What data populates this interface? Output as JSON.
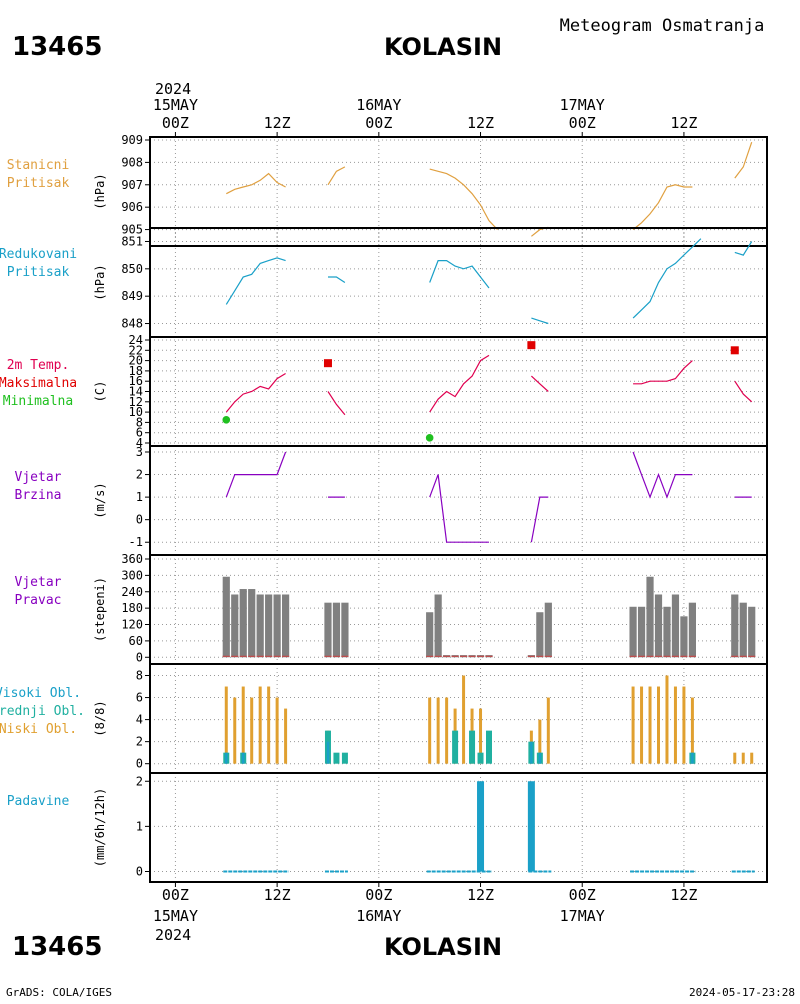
{
  "header": {
    "station_id": "13465",
    "station_name": "KOLASIN",
    "subtitle": "Meteogram Osmatranja"
  },
  "footer": {
    "credit": "GrADS: COLA/IGES",
    "timestamp": "2024-05-17-23:28"
  },
  "time_axis": {
    "year": "2024",
    "major_ticks": [
      {
        "t": 0,
        "label": "00Z",
        "date": "15MAY"
      },
      {
        "t": 12,
        "label": "12Z",
        "date": ""
      },
      {
        "t": 24,
        "label": "00Z",
        "date": "16MAY"
      },
      {
        "t": 36,
        "label": "12Z",
        "date": ""
      },
      {
        "t": 48,
        "label": "00Z",
        "date": "17MAY"
      },
      {
        "t": 60,
        "label": "12Z",
        "date": ""
      }
    ]
  },
  "panels": [
    {
      "key": "p",
      "labels": [
        "Stanicni",
        "Pritisak"
      ],
      "label_colors": [
        "#e0a040",
        "#e0a040"
      ],
      "unit": "(hPa)"
    },
    {
      "key": "slp",
      "labels": [
        "Redukovani",
        "Pritisak"
      ],
      "label_colors": [
        "#1aa0c8",
        "#1aa0c8"
      ],
      "unit": "(hPa)"
    },
    {
      "key": "temp",
      "labels": [
        "2m Temp.",
        "Maksimalna",
        "Minimalna"
      ],
      "label_colors": [
        "#e00050",
        "#e00000",
        "#20c020"
      ],
      "unit": "(C)"
    },
    {
      "key": "wspd",
      "labels": [
        "Vjetar",
        "Brzina"
      ],
      "label_colors": [
        "#8800c0",
        "#8800c0"
      ],
      "unit": "(m/s)"
    },
    {
      "key": "wdir",
      "labels": [
        "Vjetar",
        "Pravac"
      ],
      "label_colors": [
        "#8800c0",
        "#8800c0"
      ],
      "unit": "(stepeni)"
    },
    {
      "key": "cloud",
      "labels": [
        "Visoki Obl.",
        "Srednji Obl.",
        "Niski Obl."
      ],
      "label_colors": [
        "#1aa0c8",
        "#20b0a0",
        "#e0a030"
      ],
      "unit": "(8/8)"
    },
    {
      "key": "precip",
      "labels": [
        "Padavine"
      ],
      "label_colors": [
        "#1aa0c8"
      ],
      "unit": "(mm/6h/12h)"
    }
  ],
  "chart_data": [
    {
      "type": "line",
      "key": "p",
      "ylim": [
        904.4,
        909
      ],
      "yticks": [
        905,
        906,
        907,
        908,
        909
      ],
      "series": [
        {
          "color": "#e0a040",
          "points": [
            [
              6,
              906.6
            ],
            [
              7,
              906.8
            ],
            [
              8,
              906.9
            ],
            [
              9,
              907
            ],
            [
              10,
              907.2
            ],
            [
              11,
              907.5
            ],
            [
              12,
              907.1
            ],
            [
              13,
              906.9
            ]
          ]
        },
        {
          "color": "#e0a040",
          "points": [
            [
              18,
              907
            ],
            [
              19,
              907.6
            ],
            [
              20,
              907.8
            ]
          ]
        },
        {
          "color": "#e0a040",
          "points": [
            [
              30,
              907.7
            ],
            [
              31,
              907.6
            ],
            [
              32,
              907.5
            ],
            [
              33,
              907.3
            ],
            [
              34,
              907
            ],
            [
              35,
              906.6
            ],
            [
              36,
              906.1
            ],
            [
              37,
              905.4
            ],
            [
              38,
              905
            ]
          ]
        },
        {
          "color": "#e0a040",
          "points": [
            [
              42,
              904.7
            ],
            [
              43,
              905
            ],
            [
              44,
              905.1
            ]
          ]
        },
        {
          "color": "#e0a040",
          "points": [
            [
              54,
              905
            ],
            [
              55,
              905.3
            ],
            [
              56,
              905.7
            ],
            [
              57,
              906.2
            ],
            [
              58,
              906.9
            ],
            [
              59,
              907
            ],
            [
              60,
              906.9
            ],
            [
              61,
              906.9
            ]
          ]
        },
        {
          "color": "#e0a040",
          "points": [
            [
              66,
              907.3
            ],
            [
              67,
              907.8
            ],
            [
              68,
              908.9
            ]
          ]
        }
      ]
    },
    {
      "type": "line",
      "key": "slp",
      "ylim": [
        847.8,
        851.2
      ],
      "yticks": [
        848,
        849,
        850,
        851
      ],
      "series": [
        {
          "color": "#1aa0c8",
          "points": [
            [
              6,
              848.7
            ],
            [
              7,
              849.2
            ],
            [
              8,
              849.7
            ],
            [
              9,
              849.8
            ],
            [
              10,
              850.2
            ],
            [
              11,
              850.3
            ],
            [
              12,
              850.4
            ],
            [
              13,
              850.3
            ]
          ]
        },
        {
          "color": "#1aa0c8",
          "points": [
            [
              18,
              849.7
            ],
            [
              19,
              849.7
            ],
            [
              20,
              849.5
            ]
          ]
        },
        {
          "color": "#1aa0c8",
          "points": [
            [
              30,
              849.5
            ],
            [
              31,
              850.3
            ],
            [
              32,
              850.3
            ],
            [
              33,
              850.1
            ],
            [
              34,
              850
            ],
            [
              35,
              850.1
            ],
            [
              36,
              849.7
            ],
            [
              37,
              849.3
            ]
          ]
        },
        {
          "color": "#1aa0c8",
          "points": [
            [
              42,
              848.2
            ],
            [
              43,
              848.1
            ],
            [
              44,
              848
            ]
          ]
        },
        {
          "color": "#1aa0c8",
          "points": [
            [
              54,
              848.2
            ],
            [
              55,
              848.5
            ],
            [
              56,
              848.8
            ],
            [
              57,
              849.5
            ],
            [
              58,
              850
            ],
            [
              59,
              850.2
            ],
            [
              60,
              850.5
            ],
            [
              61,
              850.8
            ],
            [
              62,
              851.1
            ]
          ]
        },
        {
          "color": "#1aa0c8",
          "points": [
            [
              66,
              850.6
            ],
            [
              67,
              850.5
            ],
            [
              68,
              851
            ]
          ]
        }
      ]
    },
    {
      "type": "line",
      "key": "temp",
      "ylim": [
        4,
        24
      ],
      "yticks": [
        4,
        6,
        8,
        10,
        12,
        14,
        16,
        18,
        20,
        22,
        24
      ],
      "series": [
        {
          "color": "#e00050",
          "points": [
            [
              6,
              10
            ],
            [
              7,
              12
            ],
            [
              8,
              13.5
            ],
            [
              9,
              14
            ],
            [
              10,
              15
            ],
            [
              11,
              14.5
            ],
            [
              12,
              16.5
            ],
            [
              13,
              17.5
            ]
          ]
        },
        {
          "color": "#e00050",
          "points": [
            [
              18,
              14
            ],
            [
              19,
              11.5
            ],
            [
              20,
              9.5
            ]
          ]
        },
        {
          "color": "#e00050",
          "points": [
            [
              30,
              10
            ],
            [
              31,
              12.5
            ],
            [
              32,
              14
            ],
            [
              33,
              13
            ],
            [
              34,
              15.5
            ],
            [
              35,
              17
            ],
            [
              36,
              20
            ],
            [
              37,
              21
            ]
          ]
        },
        {
          "color": "#e00050",
          "points": [
            [
              42,
              17
            ],
            [
              43,
              15.5
            ],
            [
              44,
              14
            ]
          ]
        },
        {
          "color": "#e00050",
          "points": [
            [
              54,
              15.5
            ],
            [
              55,
              15.5
            ],
            [
              56,
              16
            ],
            [
              57,
              16
            ],
            [
              58,
              16
            ],
            [
              59,
              16.5
            ],
            [
              60,
              18.5
            ],
            [
              61,
              20
            ]
          ]
        },
        {
          "color": "#e00050",
          "points": [
            [
              66,
              16
            ],
            [
              67,
              13.5
            ],
            [
              68,
              12
            ]
          ]
        }
      ],
      "max_points": [
        [
          18,
          19.5
        ],
        [
          42,
          23
        ],
        [
          66,
          22
        ]
      ],
      "min_points": [
        [
          6,
          8.5
        ],
        [
          30,
          5
        ]
      ]
    },
    {
      "type": "line",
      "key": "wspd",
      "ylim": [
        -1.3,
        3
      ],
      "yticks": [
        -1,
        0,
        1,
        2,
        3
      ],
      "series": [
        {
          "color": "#8800c0",
          "points": [
            [
              6,
              1
            ],
            [
              7,
              2
            ],
            [
              8,
              2
            ],
            [
              9,
              2
            ],
            [
              10,
              2
            ],
            [
              11,
              2
            ],
            [
              12,
              2
            ],
            [
              13,
              3
            ]
          ]
        },
        {
          "color": "#8800c0",
          "points": [
            [
              18,
              1
            ],
            [
              19,
              1
            ],
            [
              20,
              1
            ]
          ]
        },
        {
          "color": "#8800c0",
          "points": [
            [
              30,
              1
            ],
            [
              31,
              2
            ],
            [
              32,
              -1
            ],
            [
              33,
              -1
            ],
            [
              34,
              -1
            ],
            [
              35,
              -1
            ],
            [
              36,
              -1
            ],
            [
              37,
              -1
            ]
          ]
        },
        {
          "color": "#8800c0",
          "points": [
            [
              42,
              -1
            ],
            [
              43,
              1
            ],
            [
              44,
              1
            ]
          ]
        },
        {
          "color": "#8800c0",
          "points": [
            [
              54,
              3
            ],
            [
              55,
              2
            ],
            [
              56,
              1
            ],
            [
              57,
              2
            ],
            [
              58,
              1
            ],
            [
              59,
              2
            ],
            [
              60,
              2
            ],
            [
              61,
              2
            ]
          ]
        },
        {
          "color": "#8800c0",
          "points": [
            [
              66,
              1
            ],
            [
              67,
              1
            ],
            [
              68,
              1
            ]
          ]
        }
      ]
    },
    {
      "type": "bar",
      "key": "wdir",
      "ylim": [
        -10,
        360
      ],
      "yticks": [
        0,
        60,
        120,
        180,
        240,
        300,
        360
      ],
      "bars": [
        {
          "t": 6,
          "v": 295
        },
        {
          "t": 7,
          "v": 230
        },
        {
          "t": 8,
          "v": 250
        },
        {
          "t": 9,
          "v": 250
        },
        {
          "t": 10,
          "v": 230
        },
        {
          "t": 11,
          "v": 230
        },
        {
          "t": 12,
          "v": 230
        },
        {
          "t": 13,
          "v": 230
        },
        {
          "t": 18,
          "v": 200
        },
        {
          "t": 19,
          "v": 200
        },
        {
          "t": 20,
          "v": 200
        },
        {
          "t": 30,
          "v": 165
        },
        {
          "t": 31,
          "v": 230
        },
        {
          "t": 32,
          "v": 8
        },
        {
          "t": 33,
          "v": 8
        },
        {
          "t": 34,
          "v": 8
        },
        {
          "t": 35,
          "v": 8
        },
        {
          "t": 36,
          "v": 8
        },
        {
          "t": 37,
          "v": 8
        },
        {
          "t": 42,
          "v": 8
        },
        {
          "t": 43,
          "v": 165
        },
        {
          "t": 44,
          "v": 200
        },
        {
          "t": 54,
          "v": 185
        },
        {
          "t": 55,
          "v": 185
        },
        {
          "t": 56,
          "v": 295
        },
        {
          "t": 57,
          "v": 230
        },
        {
          "t": 58,
          "v": 185
        },
        {
          "t": 59,
          "v": 230
        },
        {
          "t": 60,
          "v": 150
        },
        {
          "t": 61,
          "v": 200
        },
        {
          "t": 66,
          "v": 230
        },
        {
          "t": 67,
          "v": 200
        },
        {
          "t": 68,
          "v": 185
        }
      ]
    },
    {
      "type": "bar",
      "key": "cloud",
      "ylim": [
        -0.3,
        8.5
      ],
      "yticks": [
        0,
        2,
        4,
        6,
        8
      ],
      "low": [
        {
          "t": 6,
          "v": 7
        },
        {
          "t": 7,
          "v": 6
        },
        {
          "t": 8,
          "v": 7
        },
        {
          "t": 9,
          "v": 6
        },
        {
          "t": 10,
          "v": 7
        },
        {
          "t": 11,
          "v": 7
        },
        {
          "t": 12,
          "v": 6
        },
        {
          "t": 13,
          "v": 5
        },
        {
          "t": 18,
          "v": 3
        },
        {
          "t": 30,
          "v": 6
        },
        {
          "t": 31,
          "v": 6
        },
        {
          "t": 32,
          "v": 6
        },
        {
          "t": 33,
          "v": 5
        },
        {
          "t": 34,
          "v": 8
        },
        {
          "t": 35,
          "v": 5
        },
        {
          "t": 36,
          "v": 5
        },
        {
          "t": 42,
          "v": 3
        },
        {
          "t": 43,
          "v": 4
        },
        {
          "t": 44,
          "v": 6
        },
        {
          "t": 54,
          "v": 7
        },
        {
          "t": 55,
          "v": 7
        },
        {
          "t": 56,
          "v": 7
        },
        {
          "t": 57,
          "v": 7
        },
        {
          "t": 58,
          "v": 8
        },
        {
          "t": 59,
          "v": 7
        },
        {
          "t": 60,
          "v": 7
        },
        {
          "t": 61,
          "v": 6
        },
        {
          "t": 66,
          "v": 1
        },
        {
          "t": 67,
          "v": 1
        },
        {
          "t": 68,
          "v": 1
        }
      ],
      "mid": [
        {
          "t": 6,
          "v": 1
        },
        {
          "t": 8,
          "v": 1
        },
        {
          "t": 18,
          "v": 3
        },
        {
          "t": 19,
          "v": 1
        },
        {
          "t": 20,
          "v": 1
        },
        {
          "t": 33,
          "v": 3
        },
        {
          "t": 35,
          "v": 3
        },
        {
          "t": 36,
          "v": 1
        },
        {
          "t": 37,
          "v": 3
        },
        {
          "t": 42,
          "v": 2
        },
        {
          "t": 43,
          "v": 1
        },
        {
          "t": 61,
          "v": 1
        }
      ],
      "high": [
        {
          "t": 6,
          "v": 1
        },
        {
          "t": 8,
          "v": 1
        },
        {
          "t": 18,
          "v": 2
        },
        {
          "t": 42,
          "v": 2
        },
        {
          "t": 43,
          "v": 1
        },
        {
          "t": 61,
          "v": 1
        }
      ]
    },
    {
      "type": "bar",
      "key": "precip",
      "ylim": [
        -0.1,
        2.05
      ],
      "yticks": [
        0,
        1,
        2
      ],
      "bars": [
        {
          "t": 36,
          "v": 2
        },
        {
          "t": 42,
          "v": 2
        }
      ],
      "zero_segments": [
        [
          6,
          13
        ],
        [
          18,
          20
        ],
        [
          30,
          37
        ],
        [
          42,
          44
        ],
        [
          54,
          61
        ],
        [
          66,
          68
        ]
      ]
    }
  ]
}
